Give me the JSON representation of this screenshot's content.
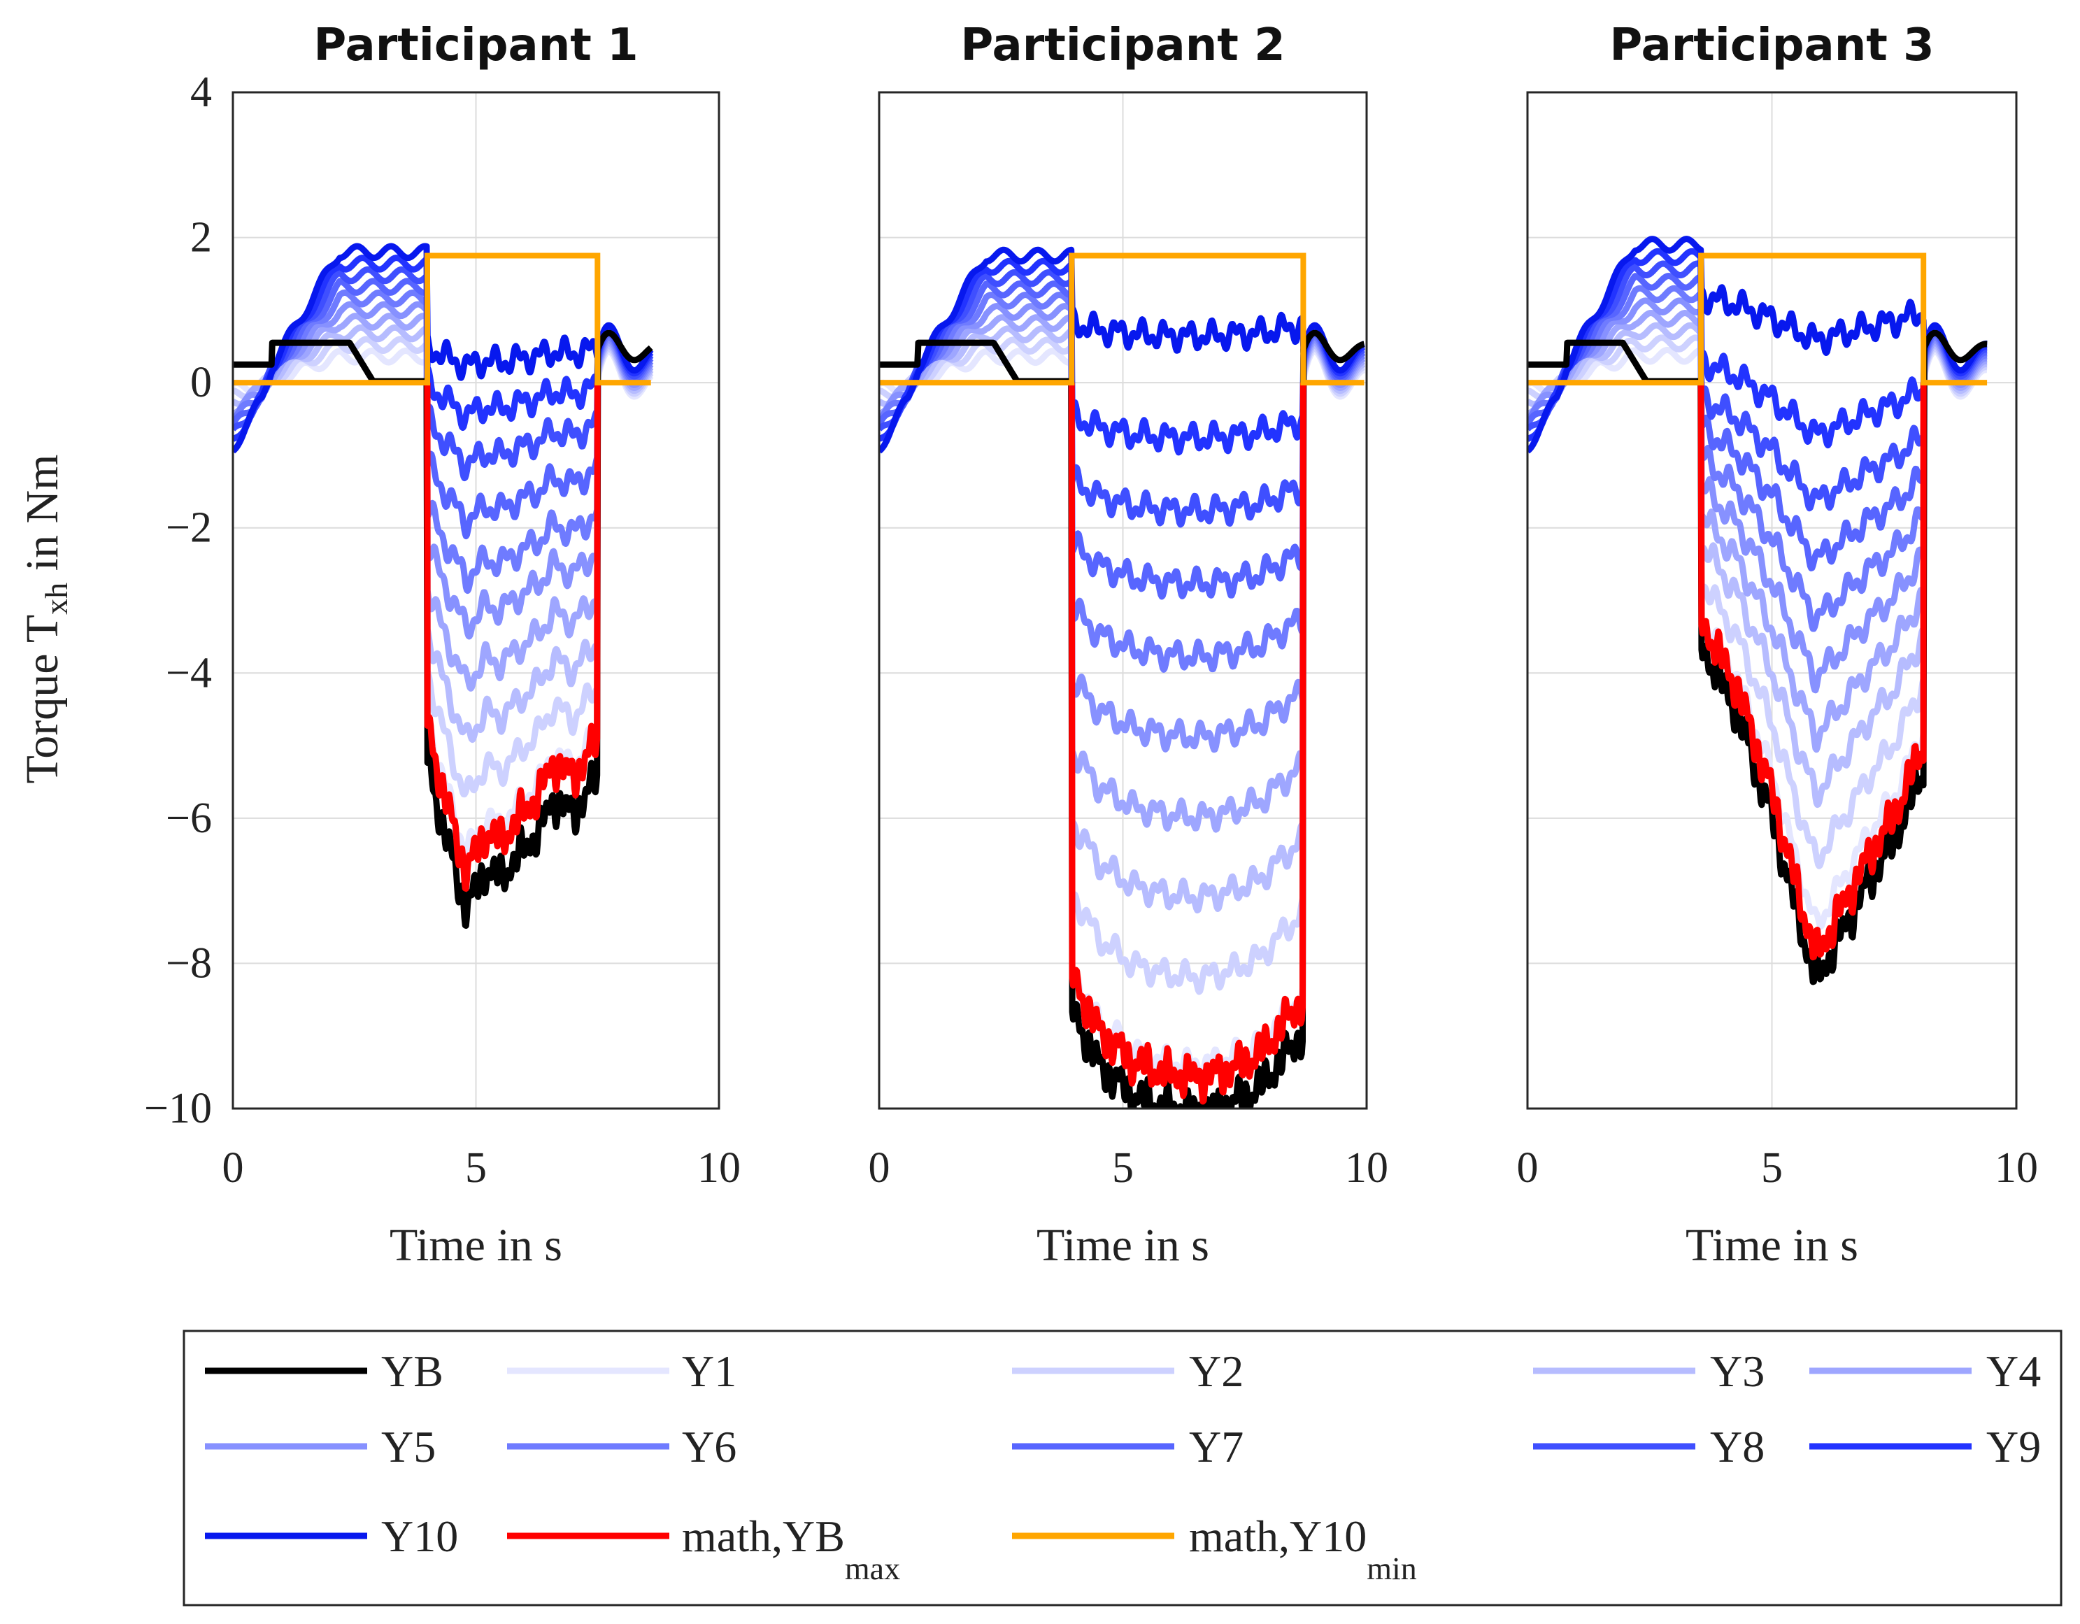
{
  "colors": {
    "YB": "#000000",
    "Y1": "#e4e6ff",
    "Y2": "#cdd1ff",
    "Y3": "#b6bcff",
    "Y4": "#9ea6ff",
    "Y5": "#8791ff",
    "Y6": "#6f7bff",
    "Y7": "#5765ff",
    "Y8": "#3f4fff",
    "Y9": "#2233ff",
    "Y10": "#0718ee",
    "YBmax": "#ff0000",
    "Y10min": "#ffa600"
  },
  "chart_data": [
    {
      "type": "line",
      "title": "Participant 1",
      "xlabel": "Time in s",
      "ylabel": "Torque T",
      "ylabel_sub": "xh",
      "ylabel_suffix": " in Nm",
      "xlim": [
        0,
        10
      ],
      "ylim": [
        -10,
        4
      ],
      "xticks": [
        "0",
        "5",
        "10"
      ],
      "yticks": [
        "4",
        "2",
        "0",
        "−2",
        "−4",
        "−6",
        "−8",
        "−10"
      ],
      "grid": true,
      "t_on": 4.0,
      "t_off": 7.5,
      "t_end": 8.6,
      "levels": [
        -4.6,
        -4.0,
        -3.4,
        -2.8,
        -2.2,
        -1.7,
        -1.1,
        -0.5,
        0.0,
        0.5
      ],
      "envelope": [
        [
          4.0,
          0.0
        ],
        [
          4.3,
          -0.8
        ],
        [
          4.8,
          -1.9
        ],
        [
          5.2,
          -1.4
        ],
        [
          5.5,
          -1.5
        ],
        [
          5.9,
          -1.2
        ],
        [
          6.3,
          -0.9
        ],
        [
          6.6,
          -0.5
        ],
        [
          7.0,
          -0.7
        ],
        [
          7.3,
          -0.4
        ],
        [
          7.5,
          -0.2
        ]
      ],
      "YB_extra": -0.6,
      "pre_on": {
        "YB": 0.55,
        "Y10": 1.8
      },
      "Y10min_high": 1.75
    },
    {
      "type": "line",
      "title": "Participant 2",
      "xlabel": "Time in s",
      "xlim": [
        0,
        10
      ],
      "ylim": [
        -10,
        4
      ],
      "xticks": [
        "0",
        "5",
        "10"
      ],
      "grid": true,
      "t_on": 3.95,
      "t_off": 8.7,
      "t_end": 9.95,
      "levels": [
        -8.3,
        -7.2,
        -6.2,
        -5.2,
        -4.2,
        -3.2,
        -2.3,
        -1.4,
        -0.5,
        0.8
      ],
      "envelope": [
        [
          3.95,
          0.2
        ],
        [
          4.5,
          -0.5
        ],
        [
          5.2,
          -0.9
        ],
        [
          5.9,
          -1.05
        ],
        [
          6.6,
          -1.1
        ],
        [
          7.2,
          -1.0
        ],
        [
          7.8,
          -0.8
        ],
        [
          8.3,
          -0.4
        ],
        [
          8.7,
          -0.1
        ]
      ],
      "YB_extra": -0.55,
      "pre_on": {
        "YB": 0.55,
        "Y10": 1.75
      },
      "Y10min_high": 1.75
    },
    {
      "type": "line",
      "title": "Participant 3",
      "xlabel": "Time in s",
      "xlim": [
        0,
        10
      ],
      "ylim": [
        -10,
        4
      ],
      "xticks": [
        "0",
        "5",
        "10"
      ],
      "grid": true,
      "t_on": 3.55,
      "t_off": 8.1,
      "t_end": 9.4,
      "levels": [
        -3.2,
        -2.7,
        -2.2,
        -1.8,
        -1.4,
        -1.0,
        -0.6,
        -0.2,
        0.3,
        1.2
      ],
      "envelope": [
        [
          3.55,
          0.0
        ],
        [
          4.3,
          -0.9
        ],
        [
          5.0,
          -2.2
        ],
        [
          5.5,
          -3.4
        ],
        [
          5.9,
          -4.3
        ],
        [
          6.5,
          -3.6
        ],
        [
          7.0,
          -3.0
        ],
        [
          7.5,
          -2.5
        ],
        [
          8.1,
          -1.6
        ]
      ],
      "YB_extra": -0.4,
      "pre_on": {
        "YB": 0.55,
        "Y10": 1.9
      },
      "Y10min_high": 1.75
    }
  ],
  "legend": [
    {
      "key": "YB",
      "label": "YB",
      "sub": ""
    },
    {
      "key": "Y1",
      "label": "Y1",
      "sub": ""
    },
    {
      "key": "Y2",
      "label": "Y2",
      "sub": ""
    },
    {
      "key": "Y3",
      "label": "Y3",
      "sub": ""
    },
    {
      "key": "Y4",
      "label": "Y4",
      "sub": ""
    },
    {
      "key": "Y5",
      "label": "Y5",
      "sub": ""
    },
    {
      "key": "Y6",
      "label": "Y6",
      "sub": ""
    },
    {
      "key": "Y7",
      "label": "Y7",
      "sub": ""
    },
    {
      "key": "Y8",
      "label": "Y8",
      "sub": ""
    },
    {
      "key": "Y9",
      "label": "Y9",
      "sub": ""
    },
    {
      "key": "Y10",
      "label": "Y10",
      "sub": ""
    },
    {
      "key": "YBmax",
      "label": "math,YB",
      "sub": "max"
    },
    {
      "key": "Y10min",
      "label": "math,Y10",
      "sub": "min"
    }
  ]
}
